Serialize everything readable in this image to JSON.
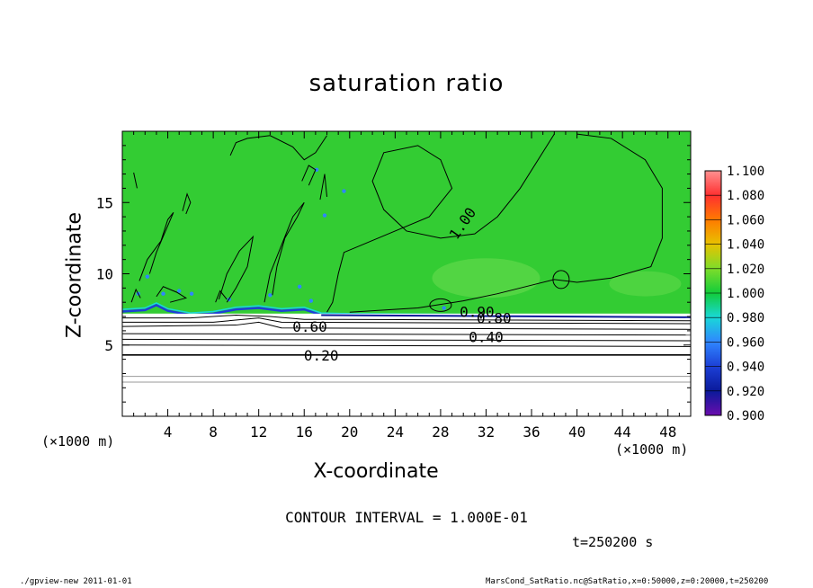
{
  "chart_data": {
    "type": "heatmap",
    "title": "saturation ratio",
    "xlabel": "X-coordinate",
    "ylabel": "Z-coordinate",
    "x_unit_label": "(×1000 m)",
    "xlim": [
      0,
      50
    ],
    "ylim": [
      0,
      20
    ],
    "x_ticks": [
      4,
      8,
      12,
      16,
      20,
      24,
      28,
      32,
      36,
      40,
      44,
      48
    ],
    "y_ticks": [
      5,
      10,
      15
    ],
    "colorbar": {
      "levels": [
        0.9,
        0.92,
        0.94,
        0.96,
        0.98,
        1.0,
        1.02,
        1.04,
        1.06,
        1.08,
        1.1
      ],
      "labels": [
        "0.900",
        "0.920",
        "0.940",
        "0.960",
        "0.980",
        "1.000",
        "1.020",
        "1.040",
        "1.060",
        "1.080",
        "1.100"
      ],
      "colors": [
        "#6a0dad",
        "#0a1a9a",
        "#1c3fd6",
        "#2f86ff",
        "#19d8d8",
        "#12cc3a",
        "#7edd2a",
        "#e8c200",
        "#ff7a00",
        "#ff3030",
        "#ff9090"
      ]
    },
    "fill_color": "#33cc33",
    "contour_labels": [
      {
        "text": "1.00",
        "x": 30,
        "z": 13.5,
        "angle": -55
      },
      {
        "text": "0.20",
        "x": 17.5,
        "z": 4.2
      },
      {
        "text": "0.40",
        "x": 32.0,
        "z": 5.5
      },
      {
        "text": "0.60",
        "x": 16.5,
        "z": 6.2
      },
      {
        "text": "0.80",
        "x": 32.7,
        "z": 6.8
      },
      {
        "text": "0.90",
        "x": 31.2,
        "z": 7.25
      }
    ],
    "annotations": {
      "contour_interval": "CONTOUR INTERVAL = 1.000E-01",
      "time": "t=250200 s"
    }
  },
  "footer": {
    "left": "./gpview-new  2011-01-01",
    "right": "MarsCond_SatRatio.nc@SatRatio,x=0:50000,z=0:20000,t=250200"
  }
}
